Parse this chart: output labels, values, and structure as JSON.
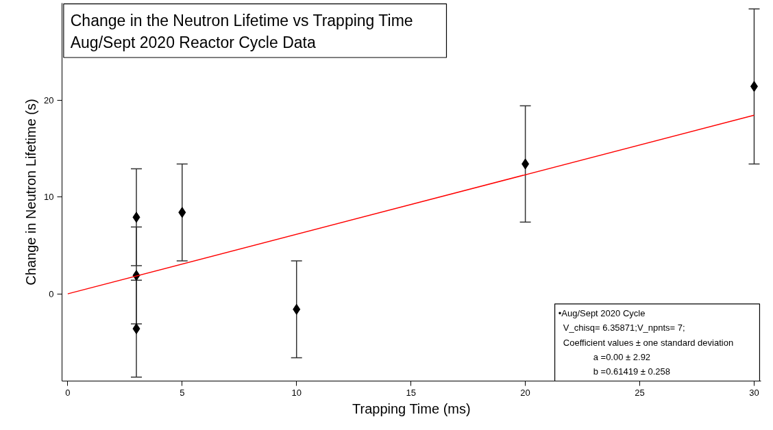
{
  "chart_data": {
    "type": "scatter",
    "title": "Change in the Neutron Lifetime vs Trapping Time",
    "subtitle": "Aug/Sept 2020 Reactor Cycle Data",
    "xlabel": "Trapping Time (ms)",
    "ylabel": "Change in Neutron Lifetime (s)",
    "xlim": [
      -0.25,
      30.3
    ],
    "ylim": [
      -9,
      30
    ],
    "xticks": [
      0,
      5,
      10,
      15,
      20,
      25,
      30
    ],
    "yticks": [
      0,
      10,
      20
    ],
    "grid": false,
    "series": [
      {
        "color": "#000000",
        "marker": "diamond",
        "x": [
          3,
          3,
          3,
          5,
          10,
          20,
          30
        ],
        "values": [
          7.9,
          1.9,
          -3.6,
          8.4,
          -1.6,
          13.4,
          21.4
        ],
        "errors": [
          5,
          5,
          5,
          5,
          5,
          6,
          8
        ]
      },
      {
        "type": "line",
        "color": "#ff0000",
        "line_style": "solid",
        "marker": "none",
        "x": [
          0,
          30
        ],
        "values": [
          0,
          18.43
        ]
      }
    ],
    "annotations": [
      "•Aug/Sept 2020 Cycle",
      "V_chisq= 6.35871;V_npnts= 7;",
      "Coefficient values ± one standard deviation",
      "a =0.00 ± 2.92",
      "b =0.61419 ± 0.258"
    ]
  }
}
